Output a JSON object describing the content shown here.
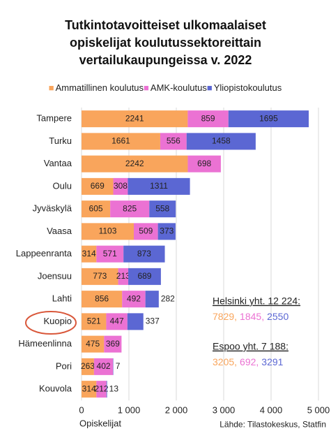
{
  "chart_data": {
    "type": "bar",
    "orientation": "horizontal",
    "stacked": true,
    "title": "Tutkintotavoitteiset ulkomaalaiset opiskelijat koulutussektoreittain vertailukaupungeissa v. 2022",
    "categories": [
      "Tampere",
      "Turku",
      "Vantaa",
      "Oulu",
      "Jyväskylä",
      "Vaasa",
      "Lappeenranta",
      "Joensuu",
      "Lahti",
      "Kuopio",
      "Hämeenlinna",
      "Pori",
      "Kouvola"
    ],
    "series": [
      {
        "name": "Ammatillinen koulutus",
        "color": "#f9a55c",
        "values": [
          2241,
          1661,
          2242,
          669,
          605,
          1103,
          314,
          773,
          856,
          521,
          475,
          263,
          314
        ]
      },
      {
        "name": "AMK-koulutus",
        "color": "#eb72d3",
        "values": [
          859,
          556,
          698,
          308,
          825,
          509,
          571,
          213,
          492,
          447,
          369,
          402,
          212
        ]
      },
      {
        "name": "Yliopistokoulutus",
        "color": "#5b67d3",
        "values": [
          1695,
          1458,
          null,
          1311,
          558,
          373,
          873,
          689,
          282,
          337,
          null,
          7,
          13
        ]
      }
    ],
    "xlim": [
      0,
      5000
    ],
    "xticks": [
      0,
      {
        "value": 1000,
        "label": "1 000"
      },
      {
        "value": 2000,
        "label": "2 000"
      },
      {
        "value": 3000,
        "label": "3 000"
      },
      {
        "value": 4000,
        "label": "4 000"
      },
      {
        "value": 5000,
        "label": "5 000"
      }
    ],
    "xlabel": "Opiskelijat",
    "grid": true,
    "legend": "top",
    "source": "Lähde: Tilastokeskus, Statfin",
    "annotations": [
      {
        "title": "Helsinki yht. 12 224:",
        "values": [
          7829,
          1845,
          2550
        ],
        "value_labels": [
          "7829,",
          "1845,",
          "2550"
        ]
      },
      {
        "title": "Espoo yht. 7 188:",
        "values": [
          3205,
          692,
          3291
        ],
        "value_labels": [
          "3205,",
          "692,",
          "3291"
        ]
      }
    ]
  }
}
